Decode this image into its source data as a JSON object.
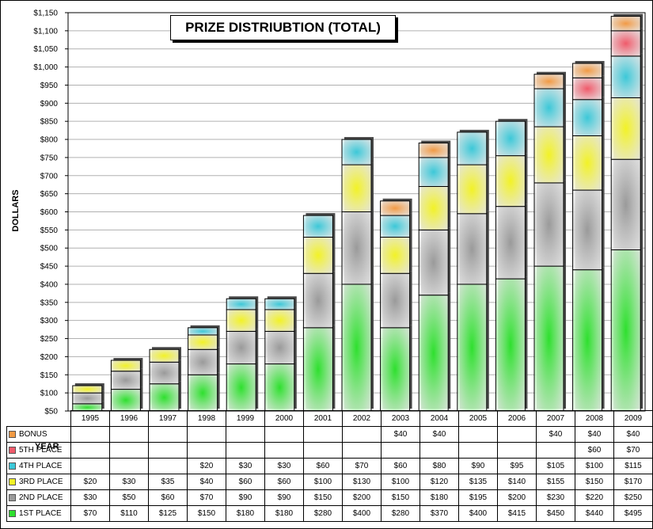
{
  "chart_data": {
    "type": "bar",
    "stacked": true,
    "title": "PRIZE DISTRIUBTION (TOTAL)",
    "ylabel": "DOLLARS",
    "xlabel": "YEAR",
    "ylim": [
      50,
      1150
    ],
    "ytick_step": 50,
    "grid": true,
    "categories": [
      "1995",
      "1996",
      "1997",
      "1998",
      "1999",
      "2000",
      "2001",
      "2002",
      "2003",
      "2004",
      "2005",
      "2006",
      "2007",
      "2008",
      "2009"
    ],
    "series": [
      {
        "name": "1ST PLACE",
        "color": "#2ee02e",
        "values": [
          70,
          110,
          125,
          150,
          180,
          180,
          280,
          400,
          280,
          370,
          400,
          415,
          450,
          440,
          495
        ],
        "labels": [
          "$70",
          "$110",
          "$125",
          "$150",
          "$180",
          "$180",
          "$280",
          "$400",
          "$280",
          "$370",
          "$400",
          "$415",
          "$450",
          "$440",
          "$495"
        ]
      },
      {
        "name": "2ND PLACE",
        "color": "#9a9a9a",
        "values": [
          30,
          50,
          60,
          70,
          90,
          90,
          150,
          200,
          150,
          180,
          195,
          200,
          230,
          220,
          250
        ],
        "labels": [
          "$30",
          "$50",
          "$60",
          "$70",
          "$90",
          "$90",
          "$150",
          "$200",
          "$150",
          "$180",
          "$195",
          "$200",
          "$230",
          "$220",
          "$250"
        ]
      },
      {
        "name": "3RD PLACE",
        "color": "#f2f226",
        "values": [
          20,
          30,
          35,
          40,
          60,
          60,
          100,
          130,
          100,
          120,
          135,
          140,
          155,
          150,
          170
        ],
        "labels": [
          "$20",
          "$30",
          "$35",
          "$40",
          "$60",
          "$60",
          "$100",
          "$130",
          "$100",
          "$120",
          "$135",
          "$140",
          "$155",
          "$150",
          "$170"
        ]
      },
      {
        "name": "4TH PLACE",
        "color": "#3cc8d8",
        "values": [
          null,
          null,
          null,
          20,
          30,
          30,
          60,
          70,
          60,
          80,
          90,
          95,
          105,
          100,
          115
        ],
        "labels": [
          "",
          "",
          "",
          "$20",
          "$30",
          "$30",
          "$60",
          "$70",
          "$60",
          "$80",
          "$90",
          "$95",
          "$105",
          "$100",
          "$115"
        ]
      },
      {
        "name": "5TH PLACE",
        "color": "#f05a6a",
        "values": [
          null,
          null,
          null,
          null,
          null,
          null,
          null,
          null,
          null,
          null,
          null,
          null,
          null,
          60,
          70
        ],
        "labels": [
          "",
          "",
          "",
          "",
          "",
          "",
          "",
          "",
          "",
          "",
          "",
          "",
          "",
          "$60",
          "$70"
        ]
      },
      {
        "name": "BONUS",
        "color": "#f29a44",
        "values": [
          null,
          null,
          null,
          null,
          null,
          null,
          null,
          null,
          40,
          40,
          null,
          null,
          40,
          40,
          40
        ],
        "labels": [
          "",
          "",
          "",
          "",
          "",
          "",
          "",
          "",
          "$40",
          "$40",
          "",
          "",
          "$40",
          "$40",
          "$40"
        ]
      }
    ]
  }
}
